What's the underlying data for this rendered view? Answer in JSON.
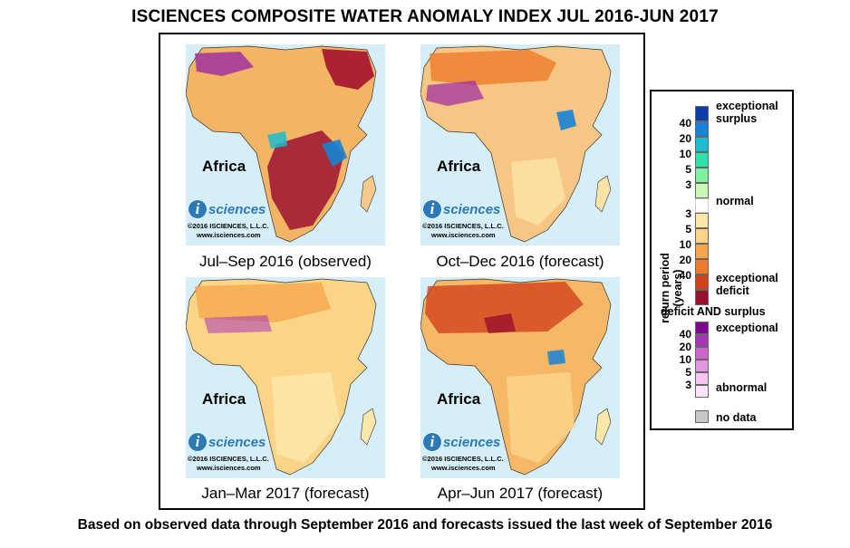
{
  "title": "ISCIENCES COMPOSITE WATER ANOMALY INDEX JUL 2016-JUN 2017",
  "footer": "Based on observed data through September 2016 and forecasts issued the last week of September 2016",
  "panels": [
    {
      "caption": "Jul–Sep 2016 (observed)",
      "label": "Africa",
      "logo_text": "sciences",
      "logo_i": "i",
      "copyright": "©2016 ISCIENCES, L.L.C.",
      "url": "www.isciences.com"
    },
    {
      "caption": "Oct–Dec 2016 (forecast)",
      "label": "Africa",
      "logo_text": "sciences",
      "logo_i": "i",
      "copyright": "©2016 ISCIENCES, L.L.C.",
      "url": "www.isciences.com"
    },
    {
      "caption": "Jan–Mar 2017 (forecast)",
      "label": "Africa",
      "logo_text": "sciences",
      "logo_i": "i",
      "copyright": "©2016 ISCIENCES, L.L.C.",
      "url": "www.isciences.com"
    },
    {
      "caption": "Apr–Jun 2017 (forecast)",
      "label": "Africa",
      "logo_text": "sciences",
      "logo_i": "i",
      "copyright": "©2016 ISCIENCES, L.L.C.",
      "url": "www.isciences.com"
    }
  ],
  "legend": {
    "axis_label": "return period (years)",
    "exceptional_surplus": "exceptional surplus",
    "normal": "normal",
    "exceptional_deficit": "exceptional deficit",
    "both_heading": "deficit AND surplus",
    "both_exceptional": "exceptional",
    "both_abnormal": "abnormal",
    "no_data": "no data",
    "surplus_numbers": [
      "40",
      "20",
      "10",
      "5",
      "3"
    ],
    "deficit_numbers": [
      "3",
      "5",
      "10",
      "20",
      "40"
    ],
    "both_numbers": [
      "40",
      "20",
      "10",
      "5",
      "3"
    ],
    "surplus_colors": [
      "#0b3ea8",
      "#1683d6",
      "#19bcd0",
      "#2fe0a8",
      "#7ef0a0",
      "#c9f7b6"
    ],
    "deficit_colors": [
      "#fbe7a8",
      "#fbd487",
      "#f6a54a",
      "#ee7a2c",
      "#d2421c",
      "#98102c"
    ],
    "both_colors": [
      "#7d0a8e",
      "#a837b6",
      "#cc64cc",
      "#e396e0",
      "#f6c6ee",
      "#fbe4f7"
    ],
    "normal_color": "#ffffff",
    "nodata_color": "#c8c8c8"
  }
}
